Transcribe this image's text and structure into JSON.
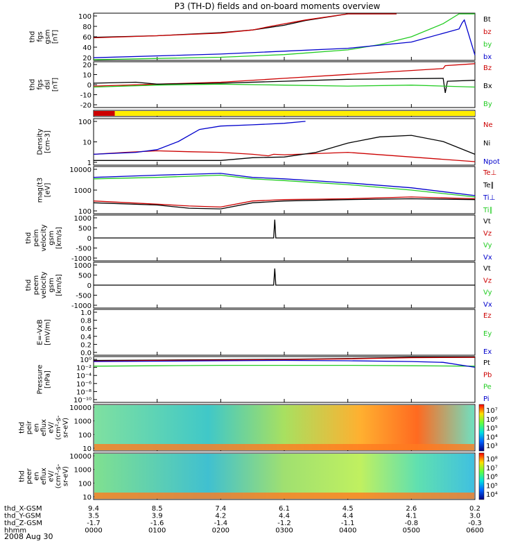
{
  "title": "P3 (TH-D) fields and on-board moments overview",
  "date": "2008 Aug 30",
  "colors": {
    "black": "#000000",
    "red": "#cc0000",
    "green": "#22cc22",
    "blue": "#0000cc",
    "yellow": "#ffee00"
  },
  "chart_data": [
    {
      "type": "line",
      "ylabel": [
        "thd",
        "fgs",
        "gsm",
        "[nT]"
      ],
      "yticks": [
        "100",
        "80",
        "60",
        "40",
        "20"
      ],
      "ylim": [
        10,
        100
      ],
      "legend": [
        {
          "label": "Bt",
          "color": "black"
        },
        {
          "label": "bz",
          "color": "red"
        },
        {
          "label": "by",
          "color": "green"
        },
        {
          "label": "bx",
          "color": "blue"
        }
      ],
      "series": [
        {
          "name": "Bt",
          "color": "black",
          "x": [
            0,
            60,
            120,
            150,
            180,
            200,
            240,
            270,
            286
          ],
          "y": [
            54,
            57,
            63,
            68,
            77,
            86,
            100,
            100,
            100
          ]
        },
        {
          "name": "bz",
          "color": "red",
          "x": [
            0,
            60,
            120,
            150,
            170,
            200,
            240,
            270,
            286
          ],
          "y": [
            53,
            57,
            62,
            68,
            76,
            87,
            100,
            100,
            100
          ]
        },
        {
          "name": "by",
          "color": "green",
          "x": [
            0,
            120,
            180,
            240,
            270,
            300,
            330,
            345,
            360
          ],
          "y": [
            11,
            16,
            21,
            30,
            40,
            55,
            80,
            100,
            100
          ]
        },
        {
          "name": "bx",
          "color": "blue",
          "x": [
            0,
            120,
            240,
            300,
            345,
            348,
            350,
            360
          ],
          "y": [
            15,
            22,
            33,
            45,
            70,
            82,
            87,
            20
          ]
        }
      ]
    },
    {
      "type": "line",
      "ylabel": [
        "thd",
        "fgs",
        "dsl",
        "[nT]"
      ],
      "yticks": [
        "20",
        "10",
        "0",
        "-10",
        "-20"
      ],
      "ylim": [
        -25,
        22
      ],
      "legend": [
        {
          "label": "Bz",
          "color": "red"
        },
        {
          "label": "Bx",
          "color": "black"
        },
        {
          "label": "By",
          "color": "green"
        }
      ],
      "series": [
        {
          "name": "Bz",
          "color": "red",
          "x": [
            0,
            60,
            120,
            180,
            240,
            300,
            330,
            332,
            360
          ],
          "y": [
            -3,
            -1,
            1,
            5,
            9,
            13,
            15,
            18,
            20
          ]
        },
        {
          "name": "Bx",
          "color": "black",
          "x": [
            0,
            40,
            60,
            120,
            180,
            240,
            330,
            332,
            334,
            360
          ],
          "y": [
            0,
            1,
            -1,
            0,
            2,
            4,
            5,
            -10,
            2,
            3
          ]
        },
        {
          "name": "By",
          "color": "green",
          "x": [
            0,
            60,
            120,
            180,
            240,
            300,
            360
          ],
          "y": [
            -4,
            -2,
            -1,
            -2,
            -3,
            -2,
            -4
          ]
        }
      ]
    },
    {
      "type": "bar",
      "ylabel": [],
      "status": [
        {
          "x0": 0,
          "x1": 20,
          "color": "red"
        },
        {
          "x0": 20,
          "x1": 360,
          "color": "yellow"
        }
      ]
    },
    {
      "type": "line",
      "ylabel": [
        "Density",
        "[cm-3]"
      ],
      "yticks": [
        "100",
        "10",
        "1"
      ],
      "ylog": true,
      "ylim": [
        0.3,
        300
      ],
      "legend": [
        {
          "label": "Ne",
          "color": "red"
        },
        {
          "label": "Ni",
          "color": "black"
        },
        {
          "label": "Npot",
          "color": "blue"
        }
      ],
      "series": [
        {
          "name": "Ne",
          "color": "red",
          "x": [
            0,
            30,
            60,
            90,
            120,
            150,
            165,
            170,
            180,
            240,
            300,
            360
          ],
          "y": [
            1.5,
            2,
            2.5,
            2.2,
            2,
            1.5,
            1.2,
            1.5,
            1.4,
            2,
            1,
            0.5
          ]
        },
        {
          "name": "Ni",
          "color": "black",
          "x": [
            0,
            60,
            120,
            150,
            180,
            210,
            240,
            270,
            300,
            330,
            360
          ],
          "y": [
            0.6,
            0.6,
            0.6,
            0.9,
            1,
            2,
            8,
            20,
            25,
            10,
            1.5
          ]
        },
        {
          "name": "Npot",
          "color": "blue",
          "x": [
            0,
            40,
            60,
            80,
            100,
            120,
            150,
            180,
            200
          ],
          "y": [
            1.5,
            2,
            3,
            10,
            60,
            100,
            120,
            150,
            200
          ]
        }
      ]
    },
    {
      "type": "line",
      "ylabel": [
        "mag(t3",
        "[eV]"
      ],
      "yticks": [
        "10000",
        "1000",
        "100"
      ],
      "ylog": true,
      "ylim": [
        30,
        12000
      ],
      "legend": [
        {
          "label": "Te⊥",
          "color": "red"
        },
        {
          "label": "Te∥",
          "color": "black"
        },
        {
          "label": "Ti⊥",
          "color": "blue"
        },
        {
          "label": "Ti∥",
          "color": "green"
        }
      ],
      "series": [
        {
          "name": "Te⊥",
          "color": "red",
          "x": [
            0,
            60,
            90,
            120,
            150,
            180,
            240,
            300,
            360
          ],
          "y": [
            150,
            100,
            80,
            70,
            150,
            180,
            200,
            250,
            200
          ]
        },
        {
          "name": "Te∥",
          "color": "black",
          "x": [
            0,
            60,
            90,
            120,
            150,
            180,
            240,
            300,
            360
          ],
          "y": [
            120,
            90,
            60,
            55,
            120,
            150,
            180,
            200,
            180
          ]
        },
        {
          "name": "Ti⊥",
          "color": "blue",
          "x": [
            0,
            60,
            120,
            150,
            180,
            240,
            300,
            360
          ],
          "y": [
            3000,
            4000,
            5000,
            3000,
            2500,
            1500,
            800,
            300
          ]
        },
        {
          "name": "Ti∥",
          "color": "green",
          "x": [
            0,
            60,
            120,
            150,
            180,
            240,
            300,
            360
          ],
          "y": [
            2500,
            3000,
            4000,
            2500,
            2000,
            1200,
            600,
            250
          ]
        }
      ]
    },
    {
      "type": "line",
      "ylabel": [
        "thd",
        "peim",
        "velocity",
        "gsm",
        "[km/s]"
      ],
      "yticks": [
        "1000",
        "500",
        "0",
        "-500",
        "-1000"
      ],
      "ylim": [
        -1000,
        1000
      ],
      "legend": [
        {
          "label": "Vt",
          "color": "black"
        },
        {
          "label": "Vz",
          "color": "red"
        },
        {
          "label": "Vy",
          "color": "green"
        },
        {
          "label": "Vx",
          "color": "blue"
        }
      ],
      "series": [
        {
          "name": "Vt",
          "color": "black",
          "x": [
            0,
            170,
            171,
            172,
            360
          ],
          "y": [
            0,
            0,
            800,
            0,
            0
          ]
        }
      ]
    },
    {
      "type": "line",
      "ylabel": [
        "thd",
        "peem",
        "velocity",
        "gsm",
        "[km/s]"
      ],
      "yticks": [
        "1000",
        "500",
        "0",
        "-500",
        "-1000"
      ],
      "ylim": [
        -1100,
        1100
      ],
      "legend": [
        {
          "label": "Vt",
          "color": "black"
        },
        {
          "label": "Vz",
          "color": "red"
        },
        {
          "label": "Vy",
          "color": "green"
        },
        {
          "label": "Vx",
          "color": "blue"
        }
      ],
      "series": [
        {
          "name": "Vt",
          "color": "black",
          "x": [
            0,
            170,
            171,
            172,
            360
          ],
          "y": [
            0,
            0,
            800,
            0,
            0
          ]
        }
      ]
    },
    {
      "type": "line",
      "ylabel": [
        "E=-VxB",
        "[mV/m]"
      ],
      "yticks": [
        "1.0",
        "0.8",
        "0.6",
        "0.4",
        "0.2",
        "0.0"
      ],
      "ylim": [
        0,
        1
      ],
      "legend": [
        {
          "label": "Ez",
          "color": "red"
        },
        {
          "label": "Ey",
          "color": "green"
        },
        {
          "label": "Ex",
          "color": "blue"
        }
      ],
      "series": []
    },
    {
      "type": "line",
      "ylabel": [
        "Pressure",
        "[nPa]"
      ],
      "yticks": [
        "10⁰",
        "10⁻²",
        "10⁻⁴",
        "10⁻⁶",
        "10⁻⁸",
        "10⁻¹⁰"
      ],
      "ylim": [
        -11,
        1
      ],
      "legend": [
        {
          "label": "Pt",
          "color": "black"
        },
        {
          "label": "Pb",
          "color": "red"
        },
        {
          "label": "Pe",
          "color": "green"
        },
        {
          "label": "Pi",
          "color": "blue"
        }
      ],
      "series": [
        {
          "name": "Pt",
          "color": "black",
          "x": [
            0,
            60,
            120,
            180,
            240,
            300,
            360
          ],
          "y": [
            0,
            0.1,
            0.2,
            0.3,
            0.5,
            0.8,
            0.9
          ]
        },
        {
          "name": "Pb",
          "color": "red",
          "x": [
            0,
            60,
            120,
            180,
            240,
            300,
            360
          ],
          "y": [
            -0.2,
            0,
            0.1,
            0.2,
            0.4,
            0.7,
            0.8
          ]
        },
        {
          "name": "Pe",
          "color": "green",
          "x": [
            0,
            60,
            120,
            180,
            240,
            300,
            360
          ],
          "y": [
            -1.5,
            -1.4,
            -1.3,
            -1.3,
            -1.3,
            -1.4,
            -1.5
          ]
        },
        {
          "name": "Pi",
          "color": "blue",
          "x": [
            0,
            60,
            120,
            180,
            240,
            300,
            330,
            360
          ],
          "y": [
            -0.3,
            -0.2,
            -0.1,
            0,
            -0.1,
            -0.3,
            -0.5,
            -1.8
          ]
        }
      ]
    },
    {
      "type": "heatmap",
      "ylabel": [
        "thd",
        "peir",
        "en",
        "eflux",
        "eV/",
        "(cm²-s-",
        "sr-eV)"
      ],
      "yticks": [
        "10000",
        "1000",
        "100",
        "10"
      ],
      "colorbar": [
        "10⁷",
        "10⁶",
        "10⁵",
        "10⁴",
        "10³"
      ]
    },
    {
      "type": "heatmap",
      "ylabel": [
        "thd",
        "peer",
        "en",
        "eflux",
        "eV/",
        "(cm²-s-",
        "sr-eV)"
      ],
      "yticks": [
        "10000",
        "1000",
        "100",
        "10"
      ],
      "colorbar": [
        "10⁸",
        "10⁷",
        "10⁶",
        "10⁵",
        "10⁴"
      ]
    }
  ],
  "xaxis": {
    "rows": [
      {
        "label": "thd_X-GSM",
        "values": [
          "9.4",
          "8.5",
          "7.4",
          "6.1",
          "4.5",
          "2.6",
          "0.2"
        ]
      },
      {
        "label": "thd_Y-GSM",
        "values": [
          "3.5",
          "3.9",
          "4.2",
          "4.4",
          "4.4",
          "4.1",
          "3.0"
        ]
      },
      {
        "label": "thd_Z-GSM",
        "values": [
          "-1.7",
          "-1.6",
          "-1.4",
          "-1.2",
          "-1.1",
          "-0.8",
          "-0.3"
        ]
      },
      {
        "label": "hhmm",
        "values": [
          "0000",
          "0100",
          "0200",
          "0300",
          "0400",
          "0500",
          "0600"
        ]
      }
    ]
  }
}
